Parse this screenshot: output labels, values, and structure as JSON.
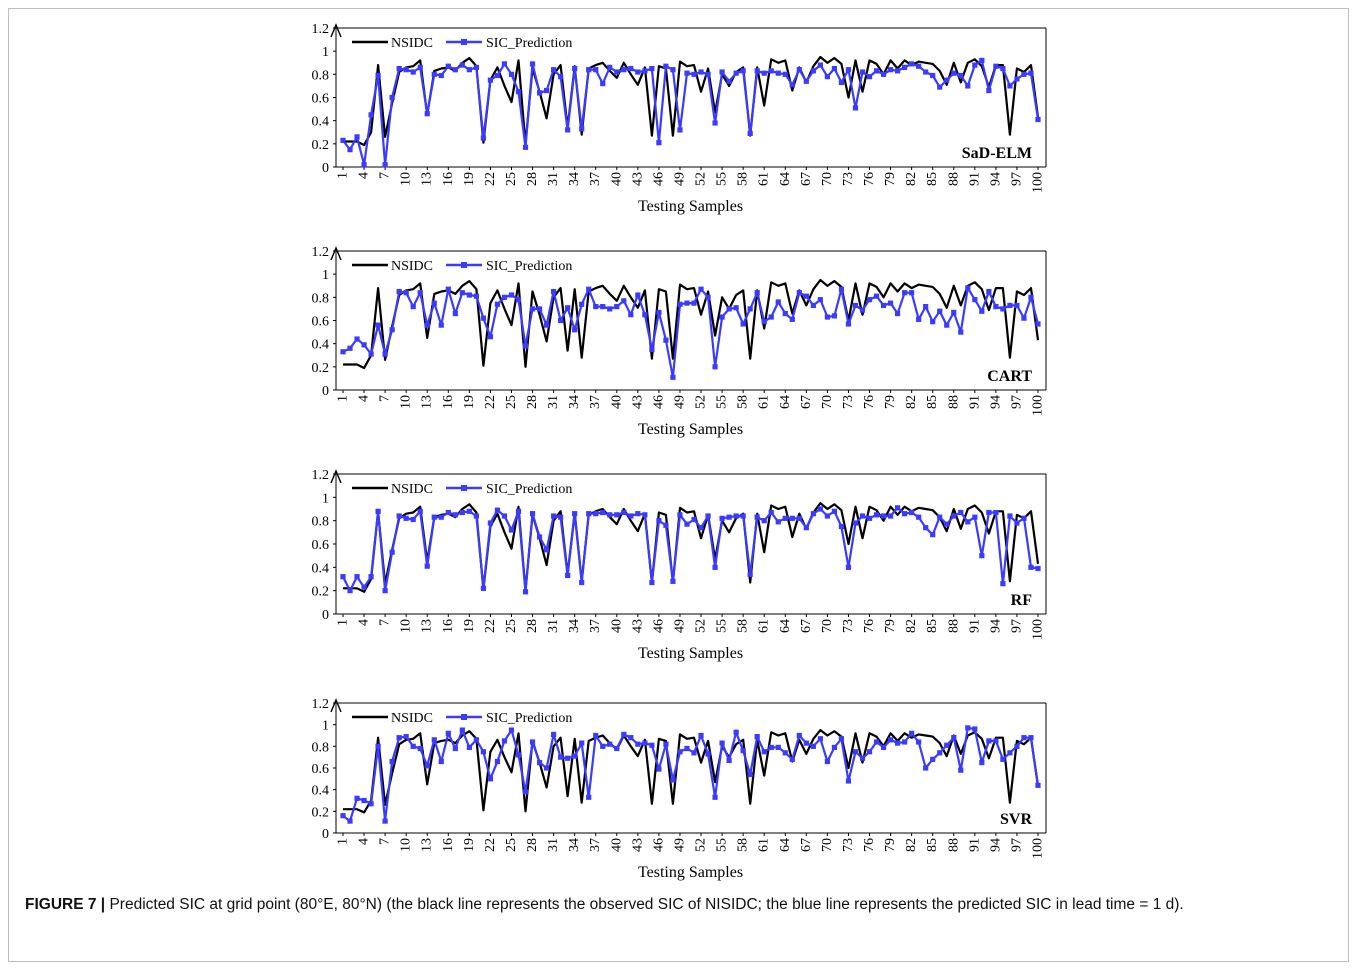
{
  "chart_data": [
    {
      "type": "line",
      "model_label": "SaD-ELM",
      "xlabel": "Testing Samples",
      "ylabel": "",
      "ylim": [
        0,
        1.2
      ],
      "yticks": [
        "0",
        "0.2",
        "0.4",
        "0.6",
        "0.8",
        "1",
        "1.2"
      ],
      "xticks": [
        "1",
        "4",
        "7",
        "10",
        "13",
        "16",
        "19",
        "22",
        "25",
        "28",
        "31",
        "34",
        "37",
        "40",
        "43",
        "46",
        "49",
        "52",
        "55",
        "58",
        "61",
        "64",
        "67",
        "70",
        "73",
        "76",
        "79",
        "82",
        "85",
        "88",
        "91",
        "94",
        "97",
        "100"
      ],
      "grid": false,
      "legend_position": "top-left",
      "series": [
        {
          "name": "NSIDC",
          "color": "#000000",
          "marker": "none",
          "values": [
            0.22,
            0.22,
            0.22,
            0.19,
            0.3,
            0.88,
            0.26,
            0.55,
            0.82,
            0.86,
            0.87,
            0.92,
            0.45,
            0.83,
            0.85,
            0.86,
            0.83,
            0.9,
            0.94,
            0.87,
            0.21,
            0.75,
            0.86,
            0.7,
            0.56,
            0.92,
            0.2,
            0.85,
            0.65,
            0.42,
            0.8,
            0.88,
            0.34,
            0.87,
            0.28,
            0.85,
            0.88,
            0.9,
            0.83,
            0.77,
            0.9,
            0.8,
            0.71,
            0.86,
            0.27,
            0.87,
            0.85,
            0.27,
            0.91,
            0.87,
            0.88,
            0.65,
            0.85,
            0.47,
            0.8,
            0.7,
            0.82,
            0.86,
            0.27,
            0.86,
            0.53,
            0.93,
            0.9,
            0.92,
            0.66,
            0.86,
            0.73,
            0.87,
            0.95,
            0.9,
            0.94,
            0.89,
            0.6,
            0.92,
            0.65,
            0.92,
            0.89,
            0.8,
            0.92,
            0.85,
            0.92,
            0.88,
            0.91,
            0.9,
            0.89,
            0.83,
            0.71,
            0.9,
            0.73,
            0.9,
            0.93,
            0.87,
            0.69,
            0.88,
            0.88,
            0.28,
            0.85,
            0.82,
            0.88,
            0.43
          ]
        },
        {
          "name": "SIC_Prediction",
          "color": "#3b3bff",
          "marker": "square",
          "values": [
            0.23,
            0.15,
            0.26,
            0.02,
            0.45,
            0.79,
            0.02,
            0.6,
            0.85,
            0.84,
            0.82,
            0.86,
            0.46,
            0.8,
            0.79,
            0.87,
            0.84,
            0.88,
            0.84,
            0.86,
            0.25,
            0.75,
            0.79,
            0.89,
            0.8,
            0.65,
            0.17,
            0.89,
            0.64,
            0.66,
            0.84,
            0.78,
            0.32,
            0.85,
            0.33,
            0.84,
            0.84,
            0.72,
            0.86,
            0.82,
            0.84,
            0.85,
            0.82,
            0.83,
            0.85,
            0.21,
            0.87,
            0.84,
            0.32,
            0.81,
            0.8,
            0.82,
            0.8,
            0.38,
            0.82,
            0.74,
            0.81,
            0.83,
            0.29,
            0.83,
            0.81,
            0.83,
            0.81,
            0.8,
            0.71,
            0.84,
            0.74,
            0.83,
            0.88,
            0.78,
            0.85,
            0.73,
            0.84,
            0.51,
            0.82,
            0.78,
            0.83,
            0.8,
            0.84,
            0.83,
            0.86,
            0.89,
            0.87,
            0.82,
            0.79,
            0.69,
            0.75,
            0.81,
            0.79,
            0.7,
            0.88,
            0.92,
            0.66,
            0.87,
            0.85,
            0.7,
            0.76,
            0.8,
            0.81,
            0.41
          ]
        }
      ]
    },
    {
      "type": "line",
      "model_label": "CART",
      "xlabel": "Testing Samples",
      "ylabel": "",
      "ylim": [
        0,
        1.2
      ],
      "yticks": [
        "0",
        "0.2",
        "0.4",
        "0.6",
        "0.8",
        "1",
        "1.2"
      ],
      "xticks": [
        "1",
        "4",
        "7",
        "10",
        "13",
        "16",
        "19",
        "22",
        "25",
        "28",
        "31",
        "34",
        "37",
        "40",
        "43",
        "46",
        "49",
        "52",
        "55",
        "58",
        "61",
        "64",
        "67",
        "70",
        "73",
        "76",
        "79",
        "82",
        "85",
        "88",
        "91",
        "94",
        "97",
        "100"
      ],
      "grid": false,
      "legend_position": "top-left",
      "series": [
        {
          "name": "NSIDC",
          "color": "#000000",
          "marker": "none",
          "values": [
            0.22,
            0.22,
            0.22,
            0.19,
            0.3,
            0.88,
            0.26,
            0.55,
            0.82,
            0.86,
            0.87,
            0.92,
            0.45,
            0.83,
            0.85,
            0.86,
            0.83,
            0.9,
            0.94,
            0.87,
            0.21,
            0.75,
            0.86,
            0.7,
            0.56,
            0.92,
            0.2,
            0.85,
            0.65,
            0.42,
            0.8,
            0.88,
            0.34,
            0.87,
            0.28,
            0.85,
            0.88,
            0.9,
            0.83,
            0.77,
            0.9,
            0.8,
            0.71,
            0.86,
            0.27,
            0.87,
            0.85,
            0.27,
            0.91,
            0.87,
            0.88,
            0.65,
            0.85,
            0.47,
            0.8,
            0.7,
            0.82,
            0.86,
            0.27,
            0.86,
            0.53,
            0.93,
            0.9,
            0.92,
            0.66,
            0.86,
            0.73,
            0.87,
            0.95,
            0.9,
            0.94,
            0.89,
            0.6,
            0.92,
            0.65,
            0.92,
            0.89,
            0.8,
            0.92,
            0.85,
            0.92,
            0.88,
            0.91,
            0.9,
            0.89,
            0.83,
            0.71,
            0.9,
            0.73,
            0.9,
            0.93,
            0.87,
            0.69,
            0.88,
            0.88,
            0.28,
            0.85,
            0.82,
            0.88,
            0.43
          ]
        },
        {
          "name": "SIC_Prediction",
          "color": "#3b3bff",
          "marker": "square",
          "values": [
            0.33,
            0.36,
            0.44,
            0.39,
            0.31,
            0.56,
            0.31,
            0.52,
            0.85,
            0.84,
            0.72,
            0.84,
            0.56,
            0.75,
            0.56,
            0.87,
            0.66,
            0.84,
            0.82,
            0.81,
            0.62,
            0.46,
            0.74,
            0.8,
            0.82,
            0.78,
            0.38,
            0.7,
            0.7,
            0.56,
            0.85,
            0.6,
            0.71,
            0.52,
            0.74,
            0.87,
            0.72,
            0.72,
            0.7,
            0.72,
            0.77,
            0.65,
            0.82,
            0.65,
            0.35,
            0.67,
            0.43,
            0.11,
            0.74,
            0.75,
            0.75,
            0.87,
            0.8,
            0.2,
            0.63,
            0.7,
            0.71,
            0.57,
            0.7,
            0.84,
            0.59,
            0.63,
            0.76,
            0.66,
            0.61,
            0.84,
            0.81,
            0.73,
            0.78,
            0.63,
            0.64,
            0.87,
            0.57,
            0.73,
            0.69,
            0.78,
            0.81,
            0.73,
            0.75,
            0.66,
            0.84,
            0.84,
            0.61,
            0.72,
            0.59,
            0.68,
            0.56,
            0.67,
            0.5,
            0.88,
            0.78,
            0.68,
            0.85,
            0.72,
            0.7,
            0.73,
            0.73,
            0.62,
            0.8,
            0.57
          ]
        }
      ]
    },
    {
      "type": "line",
      "model_label": "RF",
      "xlabel": "Testing Samples",
      "ylabel": "",
      "ylim": [
        0,
        1.2
      ],
      "yticks": [
        "0",
        "0.2",
        "0.4",
        "0.6",
        "0.8",
        "1",
        "1.2"
      ],
      "xticks": [
        "1",
        "4",
        "7",
        "10",
        "13",
        "16",
        "19",
        "22",
        "25",
        "28",
        "31",
        "34",
        "37",
        "40",
        "43",
        "46",
        "49",
        "52",
        "55",
        "58",
        "61",
        "64",
        "67",
        "70",
        "73",
        "76",
        "79",
        "82",
        "85",
        "88",
        "91",
        "94",
        "97",
        "100"
      ],
      "grid": false,
      "legend_position": "top-left",
      "series": [
        {
          "name": "NSIDC",
          "color": "#000000",
          "marker": "none",
          "values": [
            0.22,
            0.22,
            0.22,
            0.19,
            0.3,
            0.88,
            0.26,
            0.55,
            0.82,
            0.86,
            0.87,
            0.92,
            0.45,
            0.83,
            0.85,
            0.86,
            0.83,
            0.9,
            0.94,
            0.87,
            0.21,
            0.75,
            0.86,
            0.7,
            0.56,
            0.92,
            0.2,
            0.85,
            0.65,
            0.42,
            0.8,
            0.88,
            0.34,
            0.87,
            0.28,
            0.85,
            0.88,
            0.9,
            0.83,
            0.77,
            0.9,
            0.8,
            0.71,
            0.86,
            0.27,
            0.87,
            0.85,
            0.27,
            0.91,
            0.87,
            0.88,
            0.65,
            0.85,
            0.47,
            0.8,
            0.7,
            0.82,
            0.86,
            0.27,
            0.86,
            0.53,
            0.93,
            0.9,
            0.92,
            0.66,
            0.86,
            0.73,
            0.87,
            0.95,
            0.9,
            0.94,
            0.89,
            0.6,
            0.92,
            0.65,
            0.92,
            0.89,
            0.8,
            0.92,
            0.85,
            0.92,
            0.88,
            0.91,
            0.9,
            0.89,
            0.83,
            0.71,
            0.9,
            0.73,
            0.9,
            0.93,
            0.87,
            0.69,
            0.88,
            0.88,
            0.28,
            0.85,
            0.82,
            0.88,
            0.43
          ]
        },
        {
          "name": "SIC_Prediction",
          "color": "#3b3bff",
          "marker": "square",
          "values": [
            0.32,
            0.2,
            0.32,
            0.23,
            0.32,
            0.88,
            0.2,
            0.53,
            0.84,
            0.82,
            0.81,
            0.88,
            0.41,
            0.83,
            0.83,
            0.87,
            0.85,
            0.87,
            0.88,
            0.84,
            0.22,
            0.78,
            0.89,
            0.84,
            0.72,
            0.88,
            0.19,
            0.86,
            0.66,
            0.55,
            0.84,
            0.83,
            0.33,
            0.86,
            0.27,
            0.86,
            0.86,
            0.87,
            0.85,
            0.85,
            0.87,
            0.84,
            0.86,
            0.85,
            0.27,
            0.8,
            0.76,
            0.28,
            0.85,
            0.77,
            0.81,
            0.74,
            0.84,
            0.4,
            0.82,
            0.83,
            0.84,
            0.84,
            0.34,
            0.83,
            0.8,
            0.87,
            0.79,
            0.82,
            0.82,
            0.82,
            0.74,
            0.86,
            0.9,
            0.84,
            0.88,
            0.75,
            0.4,
            0.78,
            0.84,
            0.82,
            0.85,
            0.84,
            0.84,
            0.91,
            0.86,
            0.87,
            0.83,
            0.74,
            0.68,
            0.83,
            0.77,
            0.84,
            0.87,
            0.79,
            0.83,
            0.5,
            0.87,
            0.87,
            0.26,
            0.84,
            0.78,
            0.82,
            0.4,
            0.39
          ]
        }
      ]
    },
    {
      "type": "line",
      "model_label": "SVR",
      "xlabel": "Testing Samples",
      "ylabel": "",
      "ylim": [
        0,
        1.2
      ],
      "yticks": [
        "0",
        "0.2",
        "0.4",
        "0.6",
        "0.8",
        "1",
        "1.2"
      ],
      "xticks": [
        "1",
        "4",
        "7",
        "10",
        "13",
        "16",
        "19",
        "22",
        "25",
        "28",
        "31",
        "34",
        "37",
        "40",
        "43",
        "46",
        "49",
        "52",
        "55",
        "58",
        "61",
        "64",
        "67",
        "70",
        "73",
        "76",
        "79",
        "82",
        "85",
        "88",
        "91",
        "94",
        "97",
        "100"
      ],
      "grid": false,
      "legend_position": "top-left",
      "series": [
        {
          "name": "NSIDC",
          "color": "#000000",
          "marker": "none",
          "values": [
            0.22,
            0.22,
            0.22,
            0.19,
            0.3,
            0.88,
            0.26,
            0.55,
            0.82,
            0.86,
            0.87,
            0.92,
            0.45,
            0.83,
            0.85,
            0.86,
            0.83,
            0.9,
            0.94,
            0.87,
            0.21,
            0.75,
            0.86,
            0.7,
            0.56,
            0.92,
            0.2,
            0.85,
            0.65,
            0.42,
            0.8,
            0.88,
            0.34,
            0.87,
            0.28,
            0.85,
            0.88,
            0.9,
            0.83,
            0.77,
            0.9,
            0.8,
            0.71,
            0.86,
            0.27,
            0.87,
            0.85,
            0.27,
            0.91,
            0.87,
            0.88,
            0.65,
            0.85,
            0.47,
            0.8,
            0.7,
            0.82,
            0.86,
            0.27,
            0.86,
            0.53,
            0.93,
            0.9,
            0.92,
            0.66,
            0.86,
            0.73,
            0.87,
            0.95,
            0.9,
            0.94,
            0.89,
            0.6,
            0.92,
            0.65,
            0.92,
            0.89,
            0.8,
            0.92,
            0.85,
            0.92,
            0.88,
            0.91,
            0.9,
            0.89,
            0.83,
            0.71,
            0.9,
            0.73,
            0.9,
            0.93,
            0.87,
            0.69,
            0.88,
            0.88,
            0.28,
            0.85,
            0.82,
            0.88,
            0.43
          ]
        },
        {
          "name": "SIC_Prediction",
          "color": "#3b3bff",
          "marker": "square",
          "values": [
            0.16,
            0.11,
            0.32,
            0.3,
            0.27,
            0.8,
            0.11,
            0.66,
            0.88,
            0.89,
            0.8,
            0.78,
            0.62,
            0.86,
            0.66,
            0.92,
            0.78,
            0.95,
            0.79,
            0.86,
            0.75,
            0.5,
            0.66,
            0.85,
            0.95,
            0.72,
            0.38,
            0.84,
            0.65,
            0.6,
            0.91,
            0.7,
            0.69,
            0.71,
            0.83,
            0.33,
            0.9,
            0.8,
            0.82,
            0.78,
            0.91,
            0.88,
            0.82,
            0.83,
            0.81,
            0.59,
            0.82,
            0.49,
            0.75,
            0.78,
            0.74,
            0.9,
            0.73,
            0.33,
            0.83,
            0.67,
            0.93,
            0.76,
            0.54,
            0.89,
            0.75,
            0.79,
            0.79,
            0.74,
            0.68,
            0.9,
            0.83,
            0.8,
            0.87,
            0.66,
            0.79,
            0.87,
            0.48,
            0.75,
            0.69,
            0.75,
            0.84,
            0.79,
            0.86,
            0.83,
            0.84,
            0.92,
            0.84,
            0.6,
            0.68,
            0.74,
            0.81,
            0.88,
            0.58,
            0.97,
            0.96,
            0.65,
            0.85,
            0.85,
            0.68,
            0.74,
            0.8,
            0.88,
            0.88,
            0.44
          ]
        }
      ]
    }
  ],
  "caption": {
    "label": "FIGURE 7 |",
    "text": " Predicted SIC at grid point (80°E, 80°N) (the black line represents the observed SIC of NISIDC; the blue line represents the predicted SIC in lead time = 1 d)."
  },
  "colors": {
    "nsidc": "#000000",
    "prediction": "#3b3bff",
    "frame": "#bfbfbf"
  }
}
